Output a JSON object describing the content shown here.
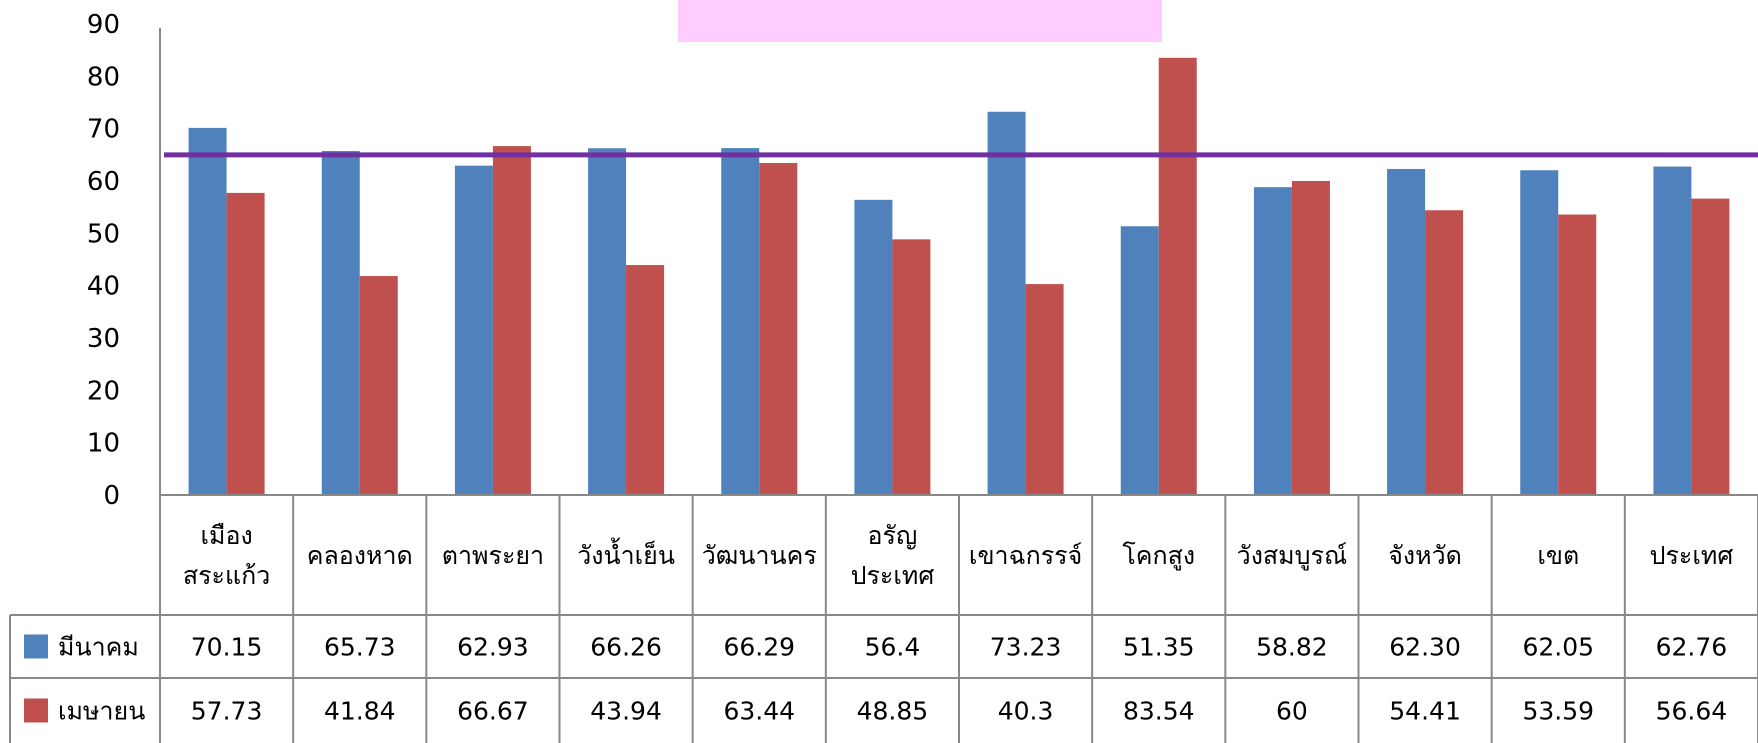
{
  "chart_data": {
    "type": "bar",
    "ylim": [
      0,
      90
    ],
    "yticks": [
      "0",
      "10",
      "20",
      "30",
      "40",
      "50",
      "60",
      "70",
      "80",
      "90"
    ],
    "categories": [
      [
        "เมือง",
        "สระแก้ว"
      ],
      [
        "คลองหาด"
      ],
      [
        "ตาพระยา"
      ],
      [
        "วังน้ำเย็น"
      ],
      [
        "วัฒนานคร"
      ],
      [
        "อรัญ",
        "ประเทศ"
      ],
      [
        "เขาฉกรรจ์"
      ],
      [
        "โคกสูง"
      ],
      [
        "วังสมบูรณ์"
      ],
      [
        "จังหวัด"
      ],
      [
        "เขต"
      ],
      [
        "ประเทศ"
      ]
    ],
    "series": [
      {
        "name": "มีนาคม",
        "color": "#4f81bd",
        "values": [
          70.15,
          65.73,
          62.93,
          66.26,
          66.29,
          56.4,
          73.23,
          51.35,
          58.82,
          62.3,
          62.05,
          62.76
        ],
        "labels": [
          "70.15",
          "65.73",
          "62.93",
          "66.26",
          "66.29",
          "56.4",
          "73.23",
          "51.35",
          "58.82",
          "62.30",
          "62.05",
          "62.76"
        ]
      },
      {
        "name": "เมษายน",
        "color": "#c0504d",
        "values": [
          57.73,
          41.84,
          66.67,
          43.94,
          63.44,
          48.85,
          40.3,
          83.54,
          60,
          54.41,
          53.59,
          56.64
        ],
        "labels": [
          "57.73",
          "41.84",
          "66.67",
          "43.94",
          "63.44",
          "48.85",
          "40.3",
          "83.54",
          "60",
          "54.41",
          "53.59",
          "56.64"
        ]
      }
    ],
    "reference_line": {
      "value": 65,
      "color": "#7030a0"
    },
    "title_box_color": "#ffccff",
    "grid": false,
    "legend": "data-table"
  }
}
